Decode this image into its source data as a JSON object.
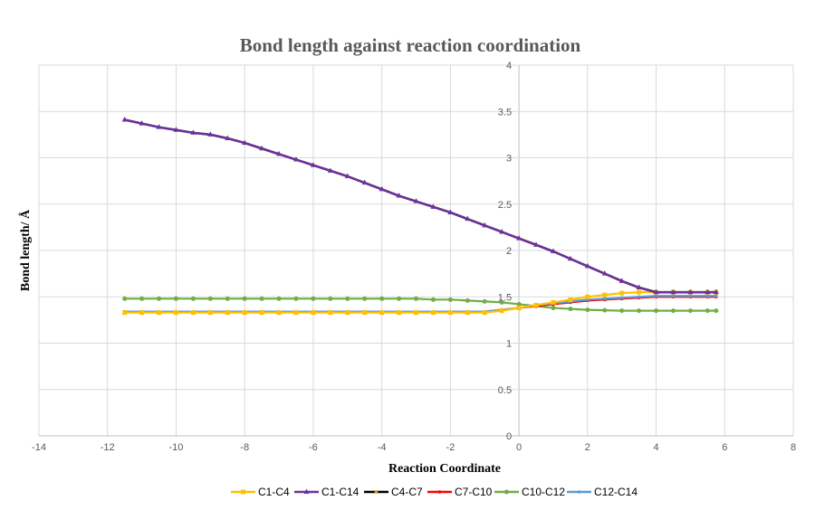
{
  "chart_data": {
    "type": "line",
    "title": "Bond length against reaction coordination",
    "xlabel": "Reaction Coordinate",
    "ylabel": "Bond length/ Å",
    "xlim": [
      -14,
      8
    ],
    "ylim": [
      0,
      4
    ],
    "xticks": [
      -14,
      -12,
      -10,
      -8,
      -6,
      -4,
      -2,
      0,
      2,
      4,
      6,
      8
    ],
    "yticks": [
      0,
      0.5,
      1,
      1.5,
      2,
      2.5,
      3,
      3.5,
      4
    ],
    "grid": true,
    "legend": "bottom",
    "x": [
      -11.5,
      -11,
      -10.5,
      -10,
      -9.5,
      -9,
      -8.5,
      -8,
      -7.5,
      -7,
      -6.5,
      -6,
      -5.5,
      -5,
      -4.5,
      -4,
      -3.5,
      -3,
      -2.5,
      -2,
      -1.5,
      -1,
      -0.5,
      0,
      0.5,
      1,
      1.5,
      2,
      2.5,
      3,
      3.5,
      4,
      4.5,
      5,
      5.5,
      5.75
    ],
    "series": [
      {
        "name": "C1-C4",
        "color": "#FFC000",
        "marker": "square",
        "values": [
          1.33,
          1.33,
          1.33,
          1.33,
          1.33,
          1.33,
          1.33,
          1.33,
          1.33,
          1.33,
          1.33,
          1.33,
          1.33,
          1.33,
          1.33,
          1.33,
          1.33,
          1.33,
          1.33,
          1.33,
          1.33,
          1.33,
          1.35,
          1.38,
          1.41,
          1.44,
          1.47,
          1.5,
          1.52,
          1.54,
          1.55,
          1.55,
          1.55,
          1.55,
          1.55,
          1.55
        ]
      },
      {
        "name": "C1-C14",
        "color": "#7030A0",
        "marker": "triangle",
        "values": [
          3.41,
          3.37,
          3.33,
          3.3,
          3.27,
          3.25,
          3.21,
          3.16,
          3.1,
          3.04,
          2.98,
          2.92,
          2.86,
          2.8,
          2.73,
          2.66,
          2.59,
          2.53,
          2.47,
          2.41,
          2.34,
          2.27,
          2.2,
          2.13,
          2.06,
          1.99,
          1.91,
          1.83,
          1.75,
          1.67,
          1.6,
          1.55,
          1.55,
          1.55,
          1.55,
          1.55
        ]
      },
      {
        "name": "C4-C7",
        "color": "#000000",
        "marker": "dot",
        "marker_color": "#C9A000",
        "values": [
          3.41,
          3.37,
          3.33,
          3.3,
          3.27,
          3.25,
          3.21,
          3.16,
          3.1,
          3.04,
          2.98,
          2.92,
          2.86,
          2.8,
          2.73,
          2.66,
          2.59,
          2.53,
          2.47,
          2.41,
          2.34,
          2.27,
          2.2,
          2.13,
          2.06,
          1.99,
          1.91,
          1.83,
          1.75,
          1.67,
          1.6,
          1.55,
          1.55,
          1.55,
          1.55,
          1.55
        ]
      },
      {
        "name": "C7-C10",
        "color": "#FF0000",
        "marker": "dot",
        "values": [
          1.34,
          1.34,
          1.34,
          1.34,
          1.34,
          1.34,
          1.34,
          1.34,
          1.34,
          1.34,
          1.34,
          1.34,
          1.34,
          1.34,
          1.34,
          1.34,
          1.34,
          1.34,
          1.34,
          1.34,
          1.34,
          1.34,
          1.36,
          1.38,
          1.4,
          1.42,
          1.44,
          1.46,
          1.47,
          1.48,
          1.49,
          1.5,
          1.5,
          1.5,
          1.5,
          1.5
        ]
      },
      {
        "name": "C10-C12",
        "color": "#70AD47",
        "marker": "circle",
        "values": [
          1.48,
          1.48,
          1.48,
          1.48,
          1.48,
          1.48,
          1.48,
          1.48,
          1.48,
          1.48,
          1.48,
          1.48,
          1.48,
          1.48,
          1.48,
          1.48,
          1.48,
          1.48,
          1.47,
          1.47,
          1.46,
          1.45,
          1.44,
          1.42,
          1.4,
          1.38,
          1.37,
          1.36,
          1.355,
          1.35,
          1.35,
          1.35,
          1.35,
          1.35,
          1.35,
          1.35
        ]
      },
      {
        "name": "C12-C14",
        "color": "#5B9BD5",
        "marker": "dot",
        "values": [
          1.34,
          1.34,
          1.34,
          1.34,
          1.34,
          1.34,
          1.34,
          1.34,
          1.34,
          1.34,
          1.34,
          1.34,
          1.34,
          1.34,
          1.34,
          1.34,
          1.34,
          1.34,
          1.34,
          1.34,
          1.34,
          1.34,
          1.36,
          1.38,
          1.41,
          1.43,
          1.45,
          1.47,
          1.48,
          1.49,
          1.5,
          1.51,
          1.51,
          1.51,
          1.51,
          1.51
        ]
      }
    ]
  }
}
